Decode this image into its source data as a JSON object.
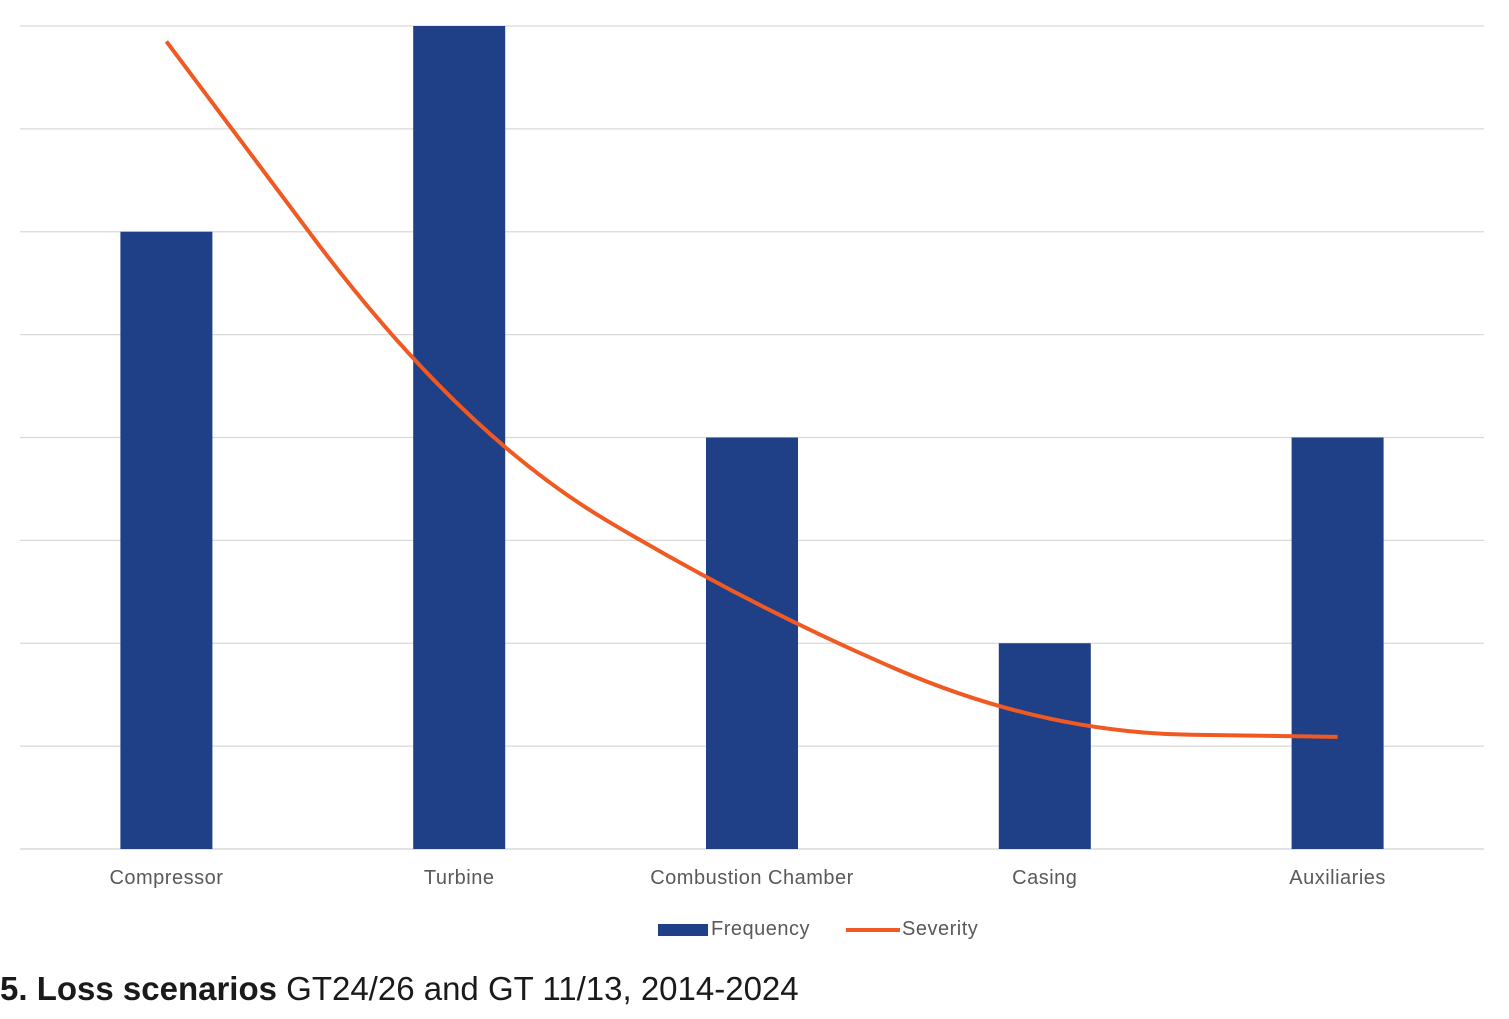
{
  "chart_data": {
    "type": "bar",
    "categories": [
      "Compressor",
      "Turbine",
      "Combustion Chamber",
      "Casing",
      "Auxiliaries"
    ],
    "series": [
      {
        "name": "Frequency",
        "type": "bar",
        "values": [
          6,
          8,
          4,
          2,
          4
        ],
        "color": "#1f3f87"
      },
      {
        "name": "Severity",
        "type": "line",
        "values": [
          7.85,
          4.05,
          2.35,
          1.13,
          1.09
        ],
        "color": "#f05a22"
      }
    ],
    "ylim": [
      0,
      8
    ],
    "y_gridlines": [
      0,
      1,
      2,
      3,
      4,
      5,
      6,
      7,
      8
    ],
    "y_tick_labels_shown": false,
    "grid": true,
    "legend": {
      "position": "bottom",
      "entries": [
        "Frequency",
        "Severity"
      ]
    },
    "title": "",
    "xlabel": "",
    "ylabel": ""
  },
  "caption": {
    "number_title": "5. Loss scenarios",
    "rest": " GT24/26 and GT 11/13, 2014-2024"
  }
}
